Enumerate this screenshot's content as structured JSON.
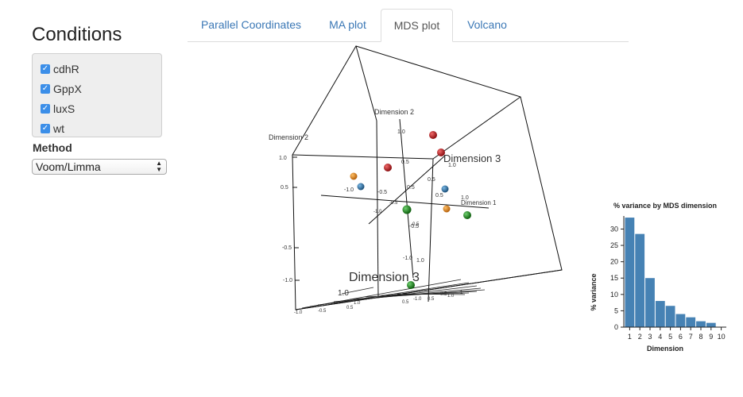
{
  "sidebar": {
    "title": "Conditions",
    "conditions": [
      {
        "label": "cdhR",
        "checked": true
      },
      {
        "label": "GppX",
        "checked": true
      },
      {
        "label": "luxS",
        "checked": true
      },
      {
        "label": "wt",
        "checked": true
      }
    ],
    "method_label": "Method",
    "method_value": "Voom/Limma"
  },
  "tabs": [
    {
      "label": "Parallel Coordinates",
      "active": false
    },
    {
      "label": "MA plot",
      "active": false
    },
    {
      "label": "MDS plot",
      "active": true
    },
    {
      "label": "Volcano",
      "active": false
    }
  ],
  "mds3d": {
    "axis_labels": {
      "dim2_left": "Dimension 2",
      "dim2_top": "Dimension 2",
      "dim3_top": "Dimension 3",
      "dim1": "Dimension 1",
      "dim3_bottom": "Dimension 3"
    },
    "left_ticks": [
      "1.0",
      "0.5",
      "-0.5",
      "-1.0"
    ],
    "inner_ticks": [
      "1.0",
      "0.5",
      "0.5",
      "1.0",
      "-1.0",
      "-0.5",
      "-1.0",
      "-0.5",
      "0.5",
      "1.0",
      "-0.5",
      "-1.0",
      "0.5",
      "1.0",
      "-0.5",
      "1.0"
    ],
    "bottom_ticks": [
      "-1.0",
      "-0.5",
      "0.5",
      "1.0",
      "0.5",
      "-1.0",
      "0.5",
      "-0.5",
      "1.0",
      "-1"
    ],
    "colors": {
      "red": "#b8161a",
      "orange": "#e08a1c",
      "blue": "#2f7fb8",
      "green": "#1f8f1f"
    }
  },
  "variance_chart": {
    "title": "% variance by MDS dimension",
    "ylabel": "% variance",
    "xlabel": "Dimension",
    "bar_color": "#4682b4"
  },
  "chart_data": {
    "type": "bar",
    "title": "% variance by MDS dimension",
    "xlabel": "Dimension",
    "ylabel": "% variance",
    "categories": [
      "1",
      "2",
      "3",
      "4",
      "5",
      "6",
      "7",
      "8",
      "9",
      "10"
    ],
    "values": [
      33.5,
      28.5,
      15,
      8,
      6.5,
      4,
      3,
      1.8,
      1.3,
      0
    ],
    "ylim": [
      0,
      34
    ],
    "yticks": [
      "0",
      "5",
      "10",
      "15",
      "20",
      "25",
      "30"
    ]
  }
}
